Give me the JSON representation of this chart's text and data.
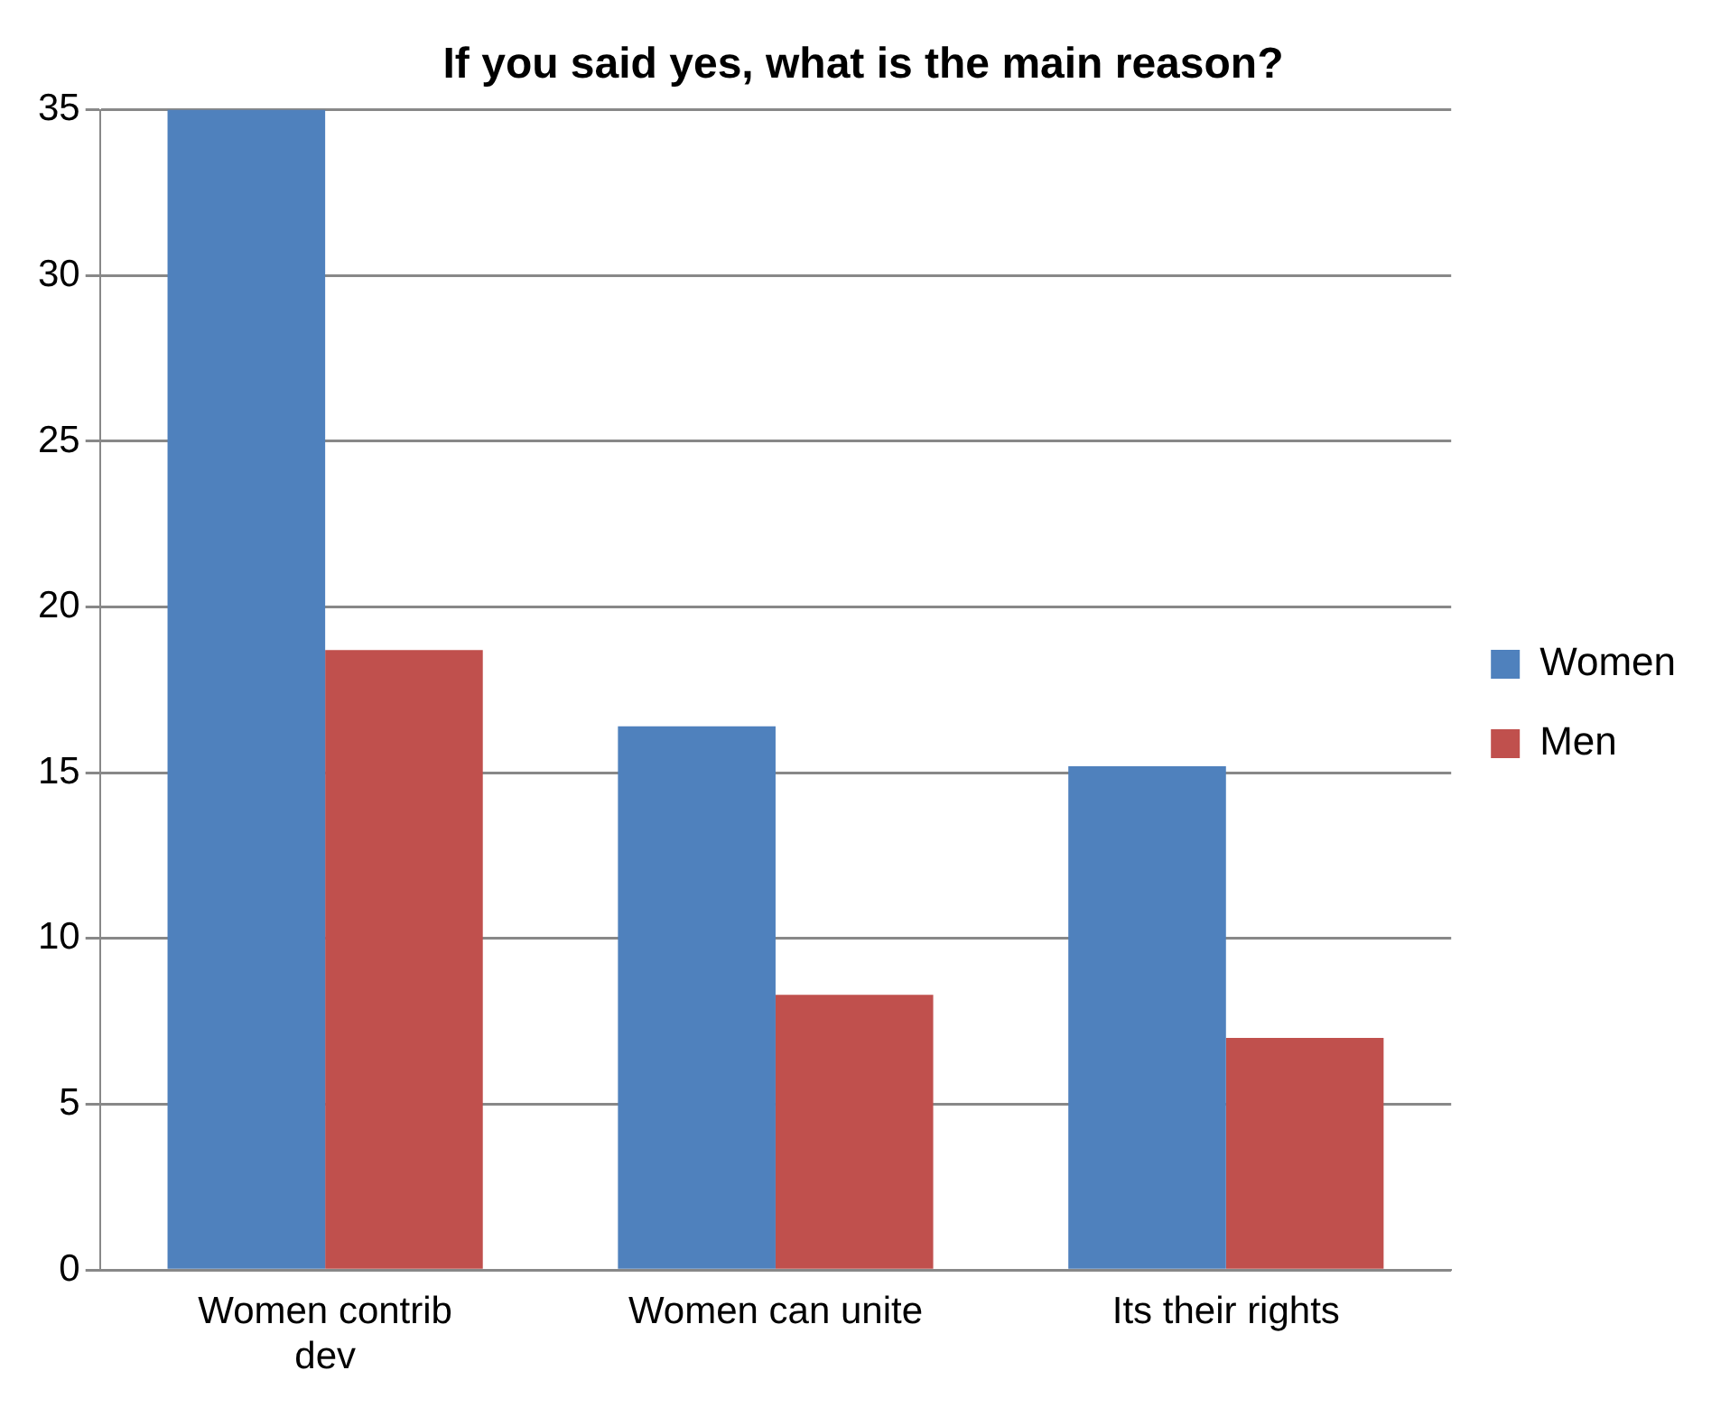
{
  "chart_data": {
    "type": "bar",
    "title": "If you said yes, what is the main reason?",
    "categories": [
      "Women contrib dev",
      "Women can unite",
      "Its their rights"
    ],
    "series": [
      {
        "name": "Women",
        "color": "#4f81bd",
        "values": [
          35,
          16.4,
          15.2
        ]
      },
      {
        "name": "Men",
        "color": "#c0504d",
        "values": [
          18.7,
          8.3,
          7
        ]
      }
    ],
    "ylim": [
      0,
      35
    ],
    "yticks": [
      0,
      5,
      10,
      15,
      20,
      25,
      30,
      35
    ],
    "grid": "y",
    "legend": "right"
  }
}
